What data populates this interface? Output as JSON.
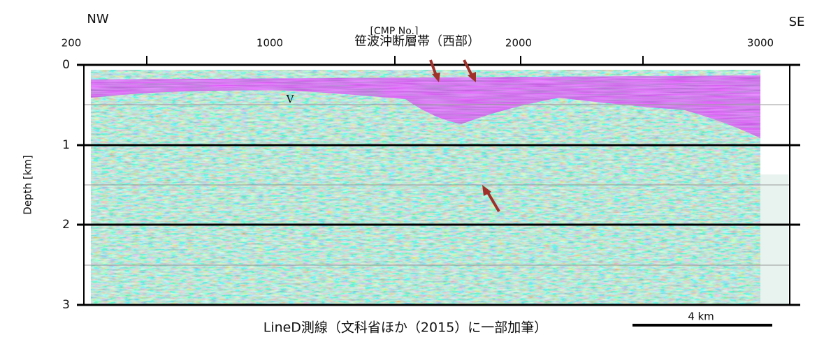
{
  "header": {
    "left": "NW",
    "right": "SE",
    "x_axis_title": "[CMP No.]"
  },
  "x_ticks": [
    "200",
    "1000",
    "2000",
    "3000"
  ],
  "y_axis": {
    "title": "Depth [km]",
    "ticks": [
      "0",
      "1",
      "2",
      "3"
    ]
  },
  "annotations": {
    "fault": "笹波沖断層帯（西部）",
    "marker": "V"
  },
  "caption": "LineD測線（文科省ほか（2015）に一部加筆）",
  "scale_bar": "4 km"
}
